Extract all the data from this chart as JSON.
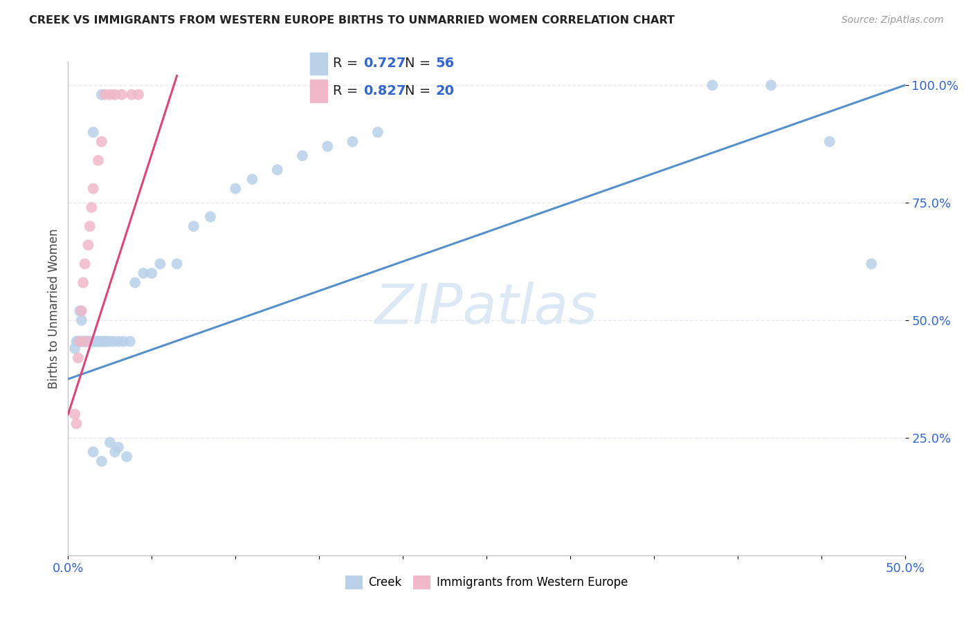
{
  "title": "CREEK VS IMMIGRANTS FROM WESTERN EUROPE BIRTHS TO UNMARRIED WOMEN CORRELATION CHART",
  "source": "Source: ZipAtlas.com",
  "ylabel": "Births to Unmarried Women",
  "xlim": [
    0.0,
    0.5
  ],
  "ylim": [
    0.0,
    1.05
  ],
  "ytick_positions": [
    0.25,
    0.5,
    0.75,
    1.0
  ],
  "ytick_labels": [
    "25.0%",
    "50.0%",
    "75.0%",
    "100.0%"
  ],
  "grid_color": "#e8e8f0",
  "background_color": "#ffffff",
  "creek_color": "#b8d0e8",
  "imm_color": "#f0b8c8",
  "creek_line_color": "#5590cc",
  "imm_line_color": "#dd4477",
  "creek_R": 0.727,
  "creek_N": 56,
  "imm_R": 0.827,
  "imm_N": 20,
  "legend_R_N_color": "#3366cc",
  "watermark_color": "#dde8f5",
  "creek_x": [
    0.004,
    0.005,
    0.006,
    0.007,
    0.007,
    0.008,
    0.008,
    0.009,
    0.01,
    0.01,
    0.011,
    0.012,
    0.013,
    0.013,
    0.014,
    0.015,
    0.015,
    0.016,
    0.017,
    0.018,
    0.019,
    0.02,
    0.021,
    0.022,
    0.023,
    0.025,
    0.027,
    0.03,
    0.033,
    0.037,
    0.04,
    0.045,
    0.05,
    0.055,
    0.065,
    0.075,
    0.085,
    0.1,
    0.11,
    0.125,
    0.14,
    0.155,
    0.17,
    0.185,
    0.015,
    0.02,
    0.025,
    0.028,
    0.03,
    0.035,
    0.385,
    0.42,
    0.455,
    0.48,
    0.015,
    0.02
  ],
  "creek_y": [
    0.44,
    0.455,
    0.455,
    0.52,
    0.455,
    0.455,
    0.5,
    0.455,
    0.455,
    0.455,
    0.455,
    0.455,
    0.455,
    0.455,
    0.455,
    0.455,
    0.455,
    0.455,
    0.455,
    0.455,
    0.455,
    0.455,
    0.455,
    0.455,
    0.455,
    0.455,
    0.455,
    0.455,
    0.455,
    0.455,
    0.58,
    0.6,
    0.6,
    0.62,
    0.62,
    0.7,
    0.72,
    0.78,
    0.8,
    0.82,
    0.85,
    0.87,
    0.88,
    0.9,
    0.22,
    0.2,
    0.24,
    0.22,
    0.23,
    0.21,
    1.0,
    1.0,
    0.88,
    0.62,
    0.9,
    0.98
  ],
  "imm_x": [
    0.004,
    0.005,
    0.006,
    0.007,
    0.008,
    0.009,
    0.01,
    0.011,
    0.012,
    0.013,
    0.014,
    0.015,
    0.018,
    0.02,
    0.022,
    0.025,
    0.028,
    0.032,
    0.038,
    0.042
  ],
  "imm_y": [
    0.3,
    0.28,
    0.42,
    0.455,
    0.52,
    0.58,
    0.62,
    0.455,
    0.66,
    0.7,
    0.74,
    0.78,
    0.84,
    0.88,
    0.98,
    0.98,
    0.98,
    0.98,
    0.98,
    0.98
  ],
  "creek_line_x": [
    0.0,
    0.5
  ],
  "creek_line_y": [
    0.375,
    1.0
  ],
  "imm_line_x": [
    0.0,
    0.065
  ],
  "imm_line_y": [
    0.3,
    1.02
  ]
}
